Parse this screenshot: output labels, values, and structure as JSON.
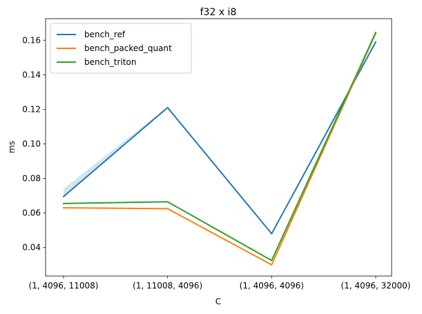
{
  "chart_data": {
    "type": "line",
    "title": "f32 x i8",
    "xlabel": "C",
    "ylabel": "ms",
    "categories": [
      "(1, 4096, 11008)",
      "(1, 11008, 4096)",
      "(1, 4096, 4096)",
      "(1, 4096, 32000)"
    ],
    "ylim": [
      0.0235,
      0.1725
    ],
    "yticks": [
      0.04,
      0.06,
      0.08,
      0.1,
      0.12,
      0.14,
      0.16
    ],
    "ytick_labels": [
      "0.04",
      "0.06",
      "0.08",
      "0.10",
      "0.12",
      "0.14",
      "0.16"
    ],
    "grid": false,
    "legend_position": "upper-left",
    "series": [
      {
        "name": "bench_ref",
        "color": "#1f77b4",
        "values": [
          0.0695,
          0.121,
          0.048,
          0.159
        ],
        "band_upper": [
          0.074,
          0.1215,
          0.048,
          0.159
        ]
      },
      {
        "name": "bench_packed_quant",
        "color": "#ff7f0e",
        "values": [
          0.063,
          0.0625,
          0.03,
          0.164
        ]
      },
      {
        "name": "bench_triton",
        "color": "#2ca02c",
        "values": [
          0.0655,
          0.0665,
          0.0325,
          0.1645
        ]
      }
    ]
  }
}
